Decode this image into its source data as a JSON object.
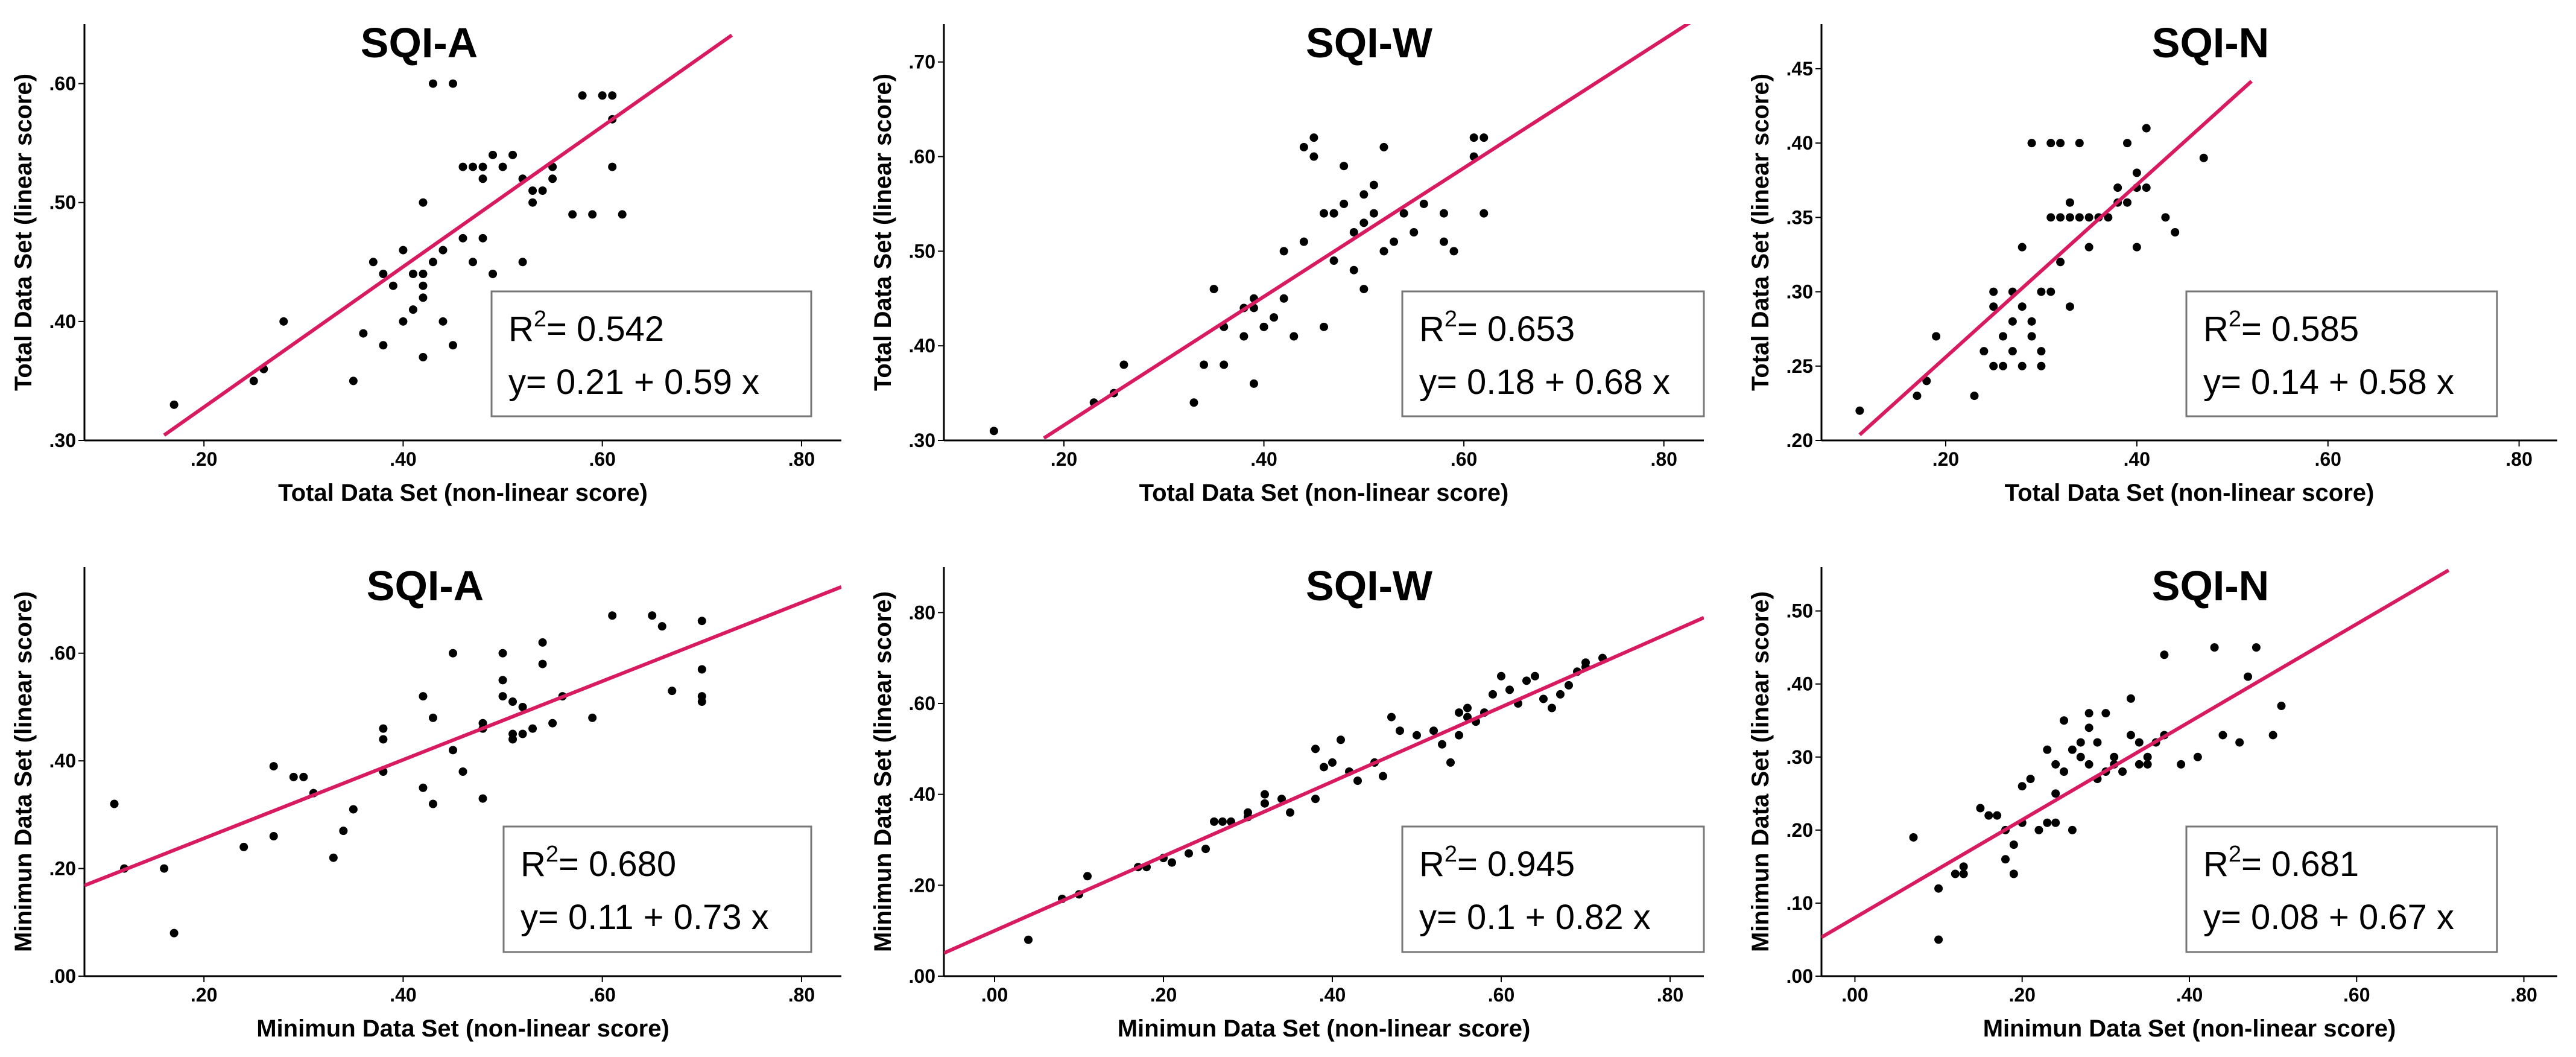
{
  "chart_data": [
    {
      "type": "scatter",
      "title": "SQI-A",
      "xlabel": "Total Data Set (non-linear score)",
      "ylabel": "Total Data Set (linear score)",
      "xlim": [
        0.08,
        0.84
      ],
      "ylim": [
        0.3,
        0.65
      ],
      "xticks": [
        0.2,
        0.4,
        0.6,
        0.8
      ],
      "xtick_labels": [
        ".20",
        ".40",
        ".60",
        ".80"
      ],
      "yticks": [
        0.3,
        0.4,
        0.5,
        0.6
      ],
      "ytick_labels": [
        ".30",
        ".40",
        ".50",
        ".60"
      ],
      "fit": {
        "intercept": 0.21,
        "slope": 0.59,
        "x_range": [
          0.16,
          0.73
        ]
      },
      "r2_prefix": "R",
      "r2_sup": "2",
      "r2_value": "= 0.542",
      "equation": "y= 0.21 + 0.59 x",
      "x": [
        0.17,
        0.25,
        0.26,
        0.28,
        0.35,
        0.36,
        0.37,
        0.38,
        0.38,
        0.39,
        0.4,
        0.4,
        0.41,
        0.41,
        0.42,
        0.42,
        0.42,
        0.42,
        0.42,
        0.43,
        0.43,
        0.44,
        0.44,
        0.45,
        0.45,
        0.46,
        0.46,
        0.47,
        0.47,
        0.48,
        0.48,
        0.48,
        0.49,
        0.49,
        0.5,
        0.51,
        0.52,
        0.52,
        0.53,
        0.53,
        0.54,
        0.55,
        0.55,
        0.57,
        0.58,
        0.59,
        0.6,
        0.61,
        0.61,
        0.61,
        0.62
      ],
      "y": [
        0.33,
        0.35,
        0.36,
        0.4,
        0.35,
        0.39,
        0.45,
        0.38,
        0.44,
        0.43,
        0.4,
        0.46,
        0.41,
        0.44,
        0.37,
        0.42,
        0.43,
        0.44,
        0.5,
        0.6,
        0.45,
        0.4,
        0.46,
        0.38,
        0.6,
        0.53,
        0.47,
        0.45,
        0.53,
        0.47,
        0.52,
        0.53,
        0.44,
        0.54,
        0.53,
        0.54,
        0.45,
        0.52,
        0.5,
        0.51,
        0.51,
        0.53,
        0.52,
        0.49,
        0.59,
        0.49,
        0.59,
        0.57,
        0.53,
        0.59,
        0.49
      ]
    },
    {
      "type": "scatter",
      "title": "SQI-W",
      "xlabel": "Total Data Set (non-linear score)",
      "ylabel": "Total Data Set (linear score)",
      "xlim": [
        0.08,
        0.84
      ],
      "ylim": [
        0.3,
        0.74
      ],
      "xticks": [
        0.2,
        0.4,
        0.6,
        0.8
      ],
      "xtick_labels": [
        ".20",
        ".40",
        ".60",
        ".80"
      ],
      "yticks": [
        0.3,
        0.4,
        0.5,
        0.6,
        0.7
      ],
      "ytick_labels": [
        ".30",
        ".40",
        ".50",
        ".60",
        ".70"
      ],
      "fit": {
        "intercept": 0.18,
        "slope": 0.68,
        "x_range": [
          0.18,
          0.84
        ]
      },
      "r2_prefix": "R",
      "r2_sup": "2",
      "r2_value": "= 0.653",
      "equation": "y= 0.18 + 0.68 x",
      "x": [
        0.13,
        0.23,
        0.25,
        0.26,
        0.33,
        0.34,
        0.35,
        0.36,
        0.36,
        0.38,
        0.38,
        0.39,
        0.39,
        0.39,
        0.4,
        0.4,
        0.41,
        0.42,
        0.42,
        0.43,
        0.44,
        0.44,
        0.45,
        0.45,
        0.46,
        0.46,
        0.47,
        0.47,
        0.47,
        0.48,
        0.48,
        0.49,
        0.49,
        0.5,
        0.5,
        0.5,
        0.51,
        0.51,
        0.52,
        0.52,
        0.53,
        0.54,
        0.55,
        0.56,
        0.58,
        0.58,
        0.59,
        0.61,
        0.61,
        0.62,
        0.62
      ],
      "y": [
        0.31,
        0.34,
        0.35,
        0.38,
        0.34,
        0.38,
        0.46,
        0.38,
        0.42,
        0.44,
        0.41,
        0.44,
        0.36,
        0.45,
        0.42,
        0.42,
        0.43,
        0.45,
        0.5,
        0.41,
        0.61,
        0.51,
        0.6,
        0.62,
        0.54,
        0.42,
        0.54,
        0.54,
        0.49,
        0.55,
        0.59,
        0.48,
        0.52,
        0.53,
        0.56,
        0.46,
        0.54,
        0.57,
        0.61,
        0.5,
        0.51,
        0.54,
        0.52,
        0.55,
        0.51,
        0.54,
        0.5,
        0.6,
        0.62,
        0.54,
        0.62
      ]
    },
    {
      "type": "scatter",
      "title": "SQI-N",
      "xlabel": "Total Data Set (non-linear score)",
      "ylabel": "Total Data Set (linear score)",
      "xlim": [
        0.07,
        0.84
      ],
      "ylim": [
        0.2,
        0.48
      ],
      "xticks": [
        0.2,
        0.4,
        0.6,
        0.8
      ],
      "xtick_labels": [
        ".20",
        ".40",
        ".60",
        ".80"
      ],
      "yticks": [
        0.2,
        0.25,
        0.3,
        0.35,
        0.4,
        0.45
      ],
      "ytick_labels": [
        ".20",
        ".25",
        ".30",
        ".35",
        ".40",
        ".45"
      ],
      "fit": {
        "intercept": 0.14,
        "slope": 0.58,
        "x_range": [
          0.11,
          0.52
        ]
      },
      "r2_prefix": "R",
      "r2_sup": "2",
      "r2_value": "= 0.585",
      "equation": "y= 0.14 + 0.58 x",
      "x": [
        0.11,
        0.17,
        0.18,
        0.19,
        0.23,
        0.24,
        0.25,
        0.25,
        0.25,
        0.26,
        0.26,
        0.27,
        0.27,
        0.27,
        0.28,
        0.28,
        0.28,
        0.29,
        0.29,
        0.29,
        0.3,
        0.3,
        0.3,
        0.31,
        0.31,
        0.31,
        0.32,
        0.32,
        0.32,
        0.33,
        0.33,
        0.33,
        0.34,
        0.34,
        0.35,
        0.35,
        0.36,
        0.37,
        0.38,
        0.38,
        0.39,
        0.39,
        0.4,
        0.4,
        0.4,
        0.41,
        0.41,
        0.43,
        0.44,
        0.47
      ],
      "y": [
        0.22,
        0.23,
        0.24,
        0.27,
        0.23,
        0.26,
        0.29,
        0.25,
        0.3,
        0.25,
        0.27,
        0.26,
        0.28,
        0.3,
        0.25,
        0.29,
        0.33,
        0.27,
        0.28,
        0.4,
        0.25,
        0.26,
        0.3,
        0.3,
        0.35,
        0.4,
        0.32,
        0.35,
        0.4,
        0.29,
        0.35,
        0.36,
        0.35,
        0.4,
        0.35,
        0.33,
        0.35,
        0.35,
        0.37,
        0.36,
        0.36,
        0.4,
        0.33,
        0.37,
        0.38,
        0.41,
        0.37,
        0.35,
        0.34,
        0.39
      ]
    },
    {
      "type": "scatter",
      "title": "SQI-A",
      "xlabel": "Minimun Data Set (non-linear score)",
      "ylabel": "Minimun Data Set (linear score)",
      "xlim": [
        0.08,
        0.84
      ],
      "ylim": [
        0.0,
        0.76
      ],
      "xticks": [
        0.2,
        0.4,
        0.6,
        0.8
      ],
      "xtick_labels": [
        ".20",
        ".40",
        ".60",
        ".80"
      ],
      "yticks": [
        0.0,
        0.2,
        0.4,
        0.6
      ],
      "ytick_labels": [
        ".00",
        ".20",
        ".40",
        ".60"
      ],
      "fit": {
        "intercept": 0.11,
        "slope": 0.73,
        "x_range": [
          0.08,
          0.84
        ]
      },
      "r2_prefix": "R",
      "r2_sup": "2",
      "r2_value": "= 0.680",
      "equation": "y= 0.11 + 0.73 x",
      "x": [
        0.11,
        0.12,
        0.16,
        0.17,
        0.24,
        0.27,
        0.27,
        0.29,
        0.3,
        0.31,
        0.33,
        0.34,
        0.35,
        0.38,
        0.38,
        0.38,
        0.42,
        0.42,
        0.43,
        0.43,
        0.45,
        0.45,
        0.46,
        0.48,
        0.48,
        0.48,
        0.5,
        0.5,
        0.5,
        0.51,
        0.51,
        0.51,
        0.52,
        0.52,
        0.53,
        0.54,
        0.54,
        0.55,
        0.56,
        0.59,
        0.61,
        0.65,
        0.66,
        0.67,
        0.7,
        0.7,
        0.7,
        0.7
      ],
      "y": [
        0.32,
        0.2,
        0.2,
        0.08,
        0.24,
        0.39,
        0.26,
        0.37,
        0.37,
        0.34,
        0.22,
        0.27,
        0.31,
        0.44,
        0.46,
        0.38,
        0.52,
        0.35,
        0.48,
        0.32,
        0.6,
        0.42,
        0.38,
        0.47,
        0.46,
        0.33,
        0.6,
        0.55,
        0.52,
        0.51,
        0.45,
        0.44,
        0.5,
        0.45,
        0.46,
        0.62,
        0.58,
        0.47,
        0.52,
        0.48,
        0.67,
        0.67,
        0.65,
        0.53,
        0.57,
        0.66,
        0.52,
        0.51
      ]
    },
    {
      "type": "scatter",
      "title": "SQI-W",
      "xlabel": "Minimun Data Set (non-linear score)",
      "ylabel": "Minimun Data Set (linear score)",
      "xlim": [
        -0.06,
        0.84
      ],
      "ylim": [
        0.0,
        0.9
      ],
      "xticks": [
        0.0,
        0.2,
        0.4,
        0.6,
        0.8
      ],
      "xtick_labels": [
        ".00",
        ".20",
        ".40",
        ".60",
        ".80"
      ],
      "yticks": [
        0.0,
        0.2,
        0.4,
        0.6,
        0.8
      ],
      "ytick_labels": [
        ".00",
        ".20",
        ".40",
        ".60",
        ".80"
      ],
      "fit": {
        "intercept": 0.1,
        "slope": 0.82,
        "x_range": [
          -0.06,
          0.84
        ]
      },
      "r2_prefix": "R",
      "r2_sup": "2",
      "r2_value": "= 0.945",
      "equation": "y= 0.1 + 0.82 x",
      "x": [
        0.04,
        0.08,
        0.1,
        0.11,
        0.17,
        0.18,
        0.2,
        0.21,
        0.23,
        0.25,
        0.26,
        0.27,
        0.28,
        0.3,
        0.3,
        0.32,
        0.32,
        0.34,
        0.35,
        0.38,
        0.38,
        0.39,
        0.4,
        0.41,
        0.42,
        0.43,
        0.45,
        0.46,
        0.47,
        0.48,
        0.5,
        0.52,
        0.53,
        0.54,
        0.55,
        0.55,
        0.56,
        0.56,
        0.57,
        0.58,
        0.59,
        0.6,
        0.61,
        0.62,
        0.63,
        0.64,
        0.65,
        0.66,
        0.67,
        0.68,
        0.69,
        0.7,
        0.7,
        0.72
      ],
      "y": [
        0.08,
        0.17,
        0.18,
        0.22,
        0.24,
        0.24,
        0.26,
        0.25,
        0.27,
        0.28,
        0.34,
        0.34,
        0.34,
        0.35,
        0.36,
        0.38,
        0.4,
        0.39,
        0.36,
        0.39,
        0.5,
        0.46,
        0.47,
        0.52,
        0.45,
        0.43,
        0.47,
        0.44,
        0.57,
        0.54,
        0.53,
        0.54,
        0.51,
        0.47,
        0.53,
        0.58,
        0.57,
        0.59,
        0.56,
        0.58,
        0.62,
        0.66,
        0.63,
        0.6,
        0.65,
        0.66,
        0.61,
        0.59,
        0.62,
        0.64,
        0.67,
        0.68,
        0.69,
        0.7
      ]
    },
    {
      "type": "scatter",
      "title": "SQI-N",
      "xlabel": "Minimun Data Set (non-linear score)",
      "ylabel": "Minimun Data Set (linear score)",
      "xlim": [
        -0.04,
        0.84
      ],
      "ylim": [
        0.0,
        0.56
      ],
      "xticks": [
        0.0,
        0.2,
        0.4,
        0.6,
        0.8
      ],
      "xtick_labels": [
        ".00",
        ".20",
        ".40",
        ".60",
        ".80"
      ],
      "yticks": [
        0.0,
        0.1,
        0.2,
        0.3,
        0.4,
        0.5
      ],
      "ytick_labels": [
        ".00",
        ".10",
        ".20",
        ".30",
        ".40",
        ".50"
      ],
      "fit": {
        "intercept": 0.08,
        "slope": 0.67,
        "x_range": [
          -0.04,
          0.71
        ]
      },
      "r2_prefix": "R",
      "r2_sup": "2",
      "r2_value": "= 0.681",
      "equation": "y= 0.08 + 0.67 x",
      "x": [
        0.07,
        0.1,
        0.1,
        0.12,
        0.13,
        0.13,
        0.15,
        0.16,
        0.17,
        0.18,
        0.18,
        0.19,
        0.19,
        0.2,
        0.2,
        0.21,
        0.22,
        0.23,
        0.23,
        0.24,
        0.24,
        0.24,
        0.25,
        0.25,
        0.26,
        0.26,
        0.27,
        0.27,
        0.28,
        0.28,
        0.28,
        0.29,
        0.29,
        0.3,
        0.3,
        0.31,
        0.31,
        0.32,
        0.33,
        0.33,
        0.34,
        0.34,
        0.35,
        0.35,
        0.36,
        0.37,
        0.37,
        0.39,
        0.41,
        0.43,
        0.44,
        0.46,
        0.47,
        0.48,
        0.5,
        0.51
      ],
      "y": [
        0.19,
        0.12,
        0.05,
        0.14,
        0.15,
        0.14,
        0.23,
        0.22,
        0.22,
        0.2,
        0.16,
        0.14,
        0.18,
        0.26,
        0.21,
        0.27,
        0.2,
        0.31,
        0.21,
        0.25,
        0.29,
        0.21,
        0.28,
        0.35,
        0.2,
        0.31,
        0.32,
        0.3,
        0.29,
        0.34,
        0.36,
        0.27,
        0.32,
        0.36,
        0.28,
        0.29,
        0.3,
        0.28,
        0.38,
        0.33,
        0.29,
        0.32,
        0.3,
        0.29,
        0.32,
        0.44,
        0.33,
        0.29,
        0.3,
        0.45,
        0.33,
        0.32,
        0.41,
        0.45,
        0.33,
        0.37
      ]
    }
  ]
}
